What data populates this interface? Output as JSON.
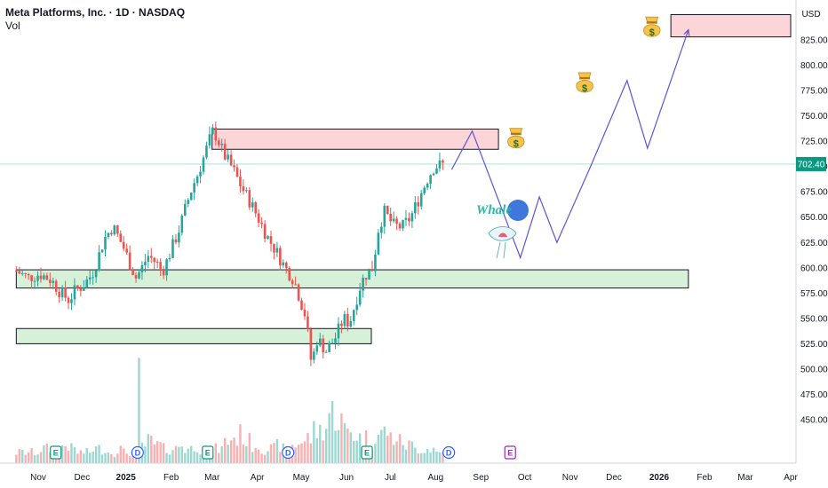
{
  "header": {
    "title": "Meta Platforms, Inc. · 1D · NASDAQ",
    "volume_label": "Vol"
  },
  "chart_data": {
    "type": "candlestick",
    "currency": "USD",
    "ylim": [
      440,
      860
    ],
    "price_ticks": [
      450,
      475,
      500,
      525,
      550,
      575,
      600,
      625,
      650,
      675,
      700,
      725,
      750,
      775,
      800,
      825
    ],
    "last_price": "702.40",
    "last_price_value": 702.4,
    "x_ticks": [
      "Nov",
      "Dec",
      "2025",
      "Feb",
      "Mar",
      "Apr",
      "May",
      "Jun",
      "Jul",
      "Aug",
      "Sep",
      "Oct",
      "Nov",
      "Dec",
      "2026",
      "Feb",
      "Mar",
      "Apr"
    ],
    "bold_ticks": [
      "2025",
      "2026"
    ],
    "x_range_days": [
      0,
      530
    ],
    "x_tick_days": [
      15,
      45,
      75,
      106,
      134,
      165,
      195,
      226,
      256,
      287,
      318,
      348,
      379,
      409,
      440,
      471,
      499,
      530
    ],
    "price_path": [
      [
        0,
        597
      ],
      [
        8,
        590
      ],
      [
        16,
        594
      ],
      [
        24,
        588
      ],
      [
        30,
        576
      ],
      [
        36,
        568
      ],
      [
        40,
        577
      ],
      [
        46,
        583
      ],
      [
        52,
        594
      ],
      [
        56,
        610
      ],
      [
        60,
        628
      ],
      [
        66,
        641
      ],
      [
        70,
        630
      ],
      [
        74,
        618
      ],
      [
        78,
        603
      ],
      [
        82,
        590
      ],
      [
        86,
        600
      ],
      [
        90,
        612
      ],
      [
        96,
        605
      ],
      [
        100,
        596
      ],
      [
        104,
        610
      ],
      [
        108,
        625
      ],
      [
        112,
        640
      ],
      [
        116,
        660
      ],
      [
        120,
        678
      ],
      [
        124,
        692
      ],
      [
        128,
        708
      ],
      [
        132,
        725
      ],
      [
        134,
        735
      ],
      [
        137,
        730
      ],
      [
        142,
        712
      ],
      [
        148,
        698
      ],
      [
        154,
        680
      ],
      [
        160,
        665
      ],
      [
        166,
        648
      ],
      [
        172,
        630
      ],
      [
        178,
        616
      ],
      [
        184,
        600
      ],
      [
        190,
        588
      ],
      [
        194,
        570
      ],
      [
        198,
        552
      ],
      [
        200,
        528
      ],
      [
        202,
        505
      ],
      [
        206,
        530
      ],
      [
        212,
        518
      ],
      [
        218,
        530
      ],
      [
        224,
        550
      ],
      [
        228,
        545
      ],
      [
        232,
        565
      ],
      [
        236,
        585
      ],
      [
        240,
        595
      ],
      [
        244,
        600
      ],
      [
        248,
        640
      ],
      [
        252,
        655
      ],
      [
        258,
        642
      ],
      [
        264,
        640
      ],
      [
        270,
        650
      ],
      [
        276,
        670
      ],
      [
        282,
        690
      ],
      [
        286,
        700
      ],
      [
        292,
        702
      ]
    ],
    "volume_profile": [
      3,
      3,
      3,
      4,
      4,
      3,
      5,
      4,
      3,
      3,
      4,
      4,
      3,
      4,
      3,
      3,
      5,
      6,
      5,
      4,
      4,
      5,
      4,
      5,
      4,
      3,
      4,
      6,
      7,
      8,
      6,
      5,
      4,
      4,
      5,
      4,
      5,
      6,
      7,
      9,
      10,
      14,
      12,
      9,
      8,
      7,
      6,
      8,
      9,
      7,
      6,
      5,
      4,
      4,
      4,
      3,
      3
    ],
    "volume_max_ratio": 0.9,
    "projection_path": [
      [
        298,
        697
      ],
      [
        312,
        735
      ],
      [
        345,
        610
      ],
      [
        358,
        670
      ],
      [
        370,
        625
      ],
      [
        393,
        700
      ],
      [
        418,
        785
      ],
      [
        432,
        718
      ],
      [
        460,
        835
      ]
    ],
    "zones": [
      {
        "kind": "resistance",
        "price_top": 737,
        "price_bottom": 717,
        "day_start": 134,
        "day_end": 330
      },
      {
        "kind": "resistance",
        "price_top": 850,
        "price_bottom": 828,
        "day_start": 448,
        "day_end": 530
      },
      {
        "kind": "support",
        "price_top": 598,
        "price_bottom": 580,
        "day_start": 0,
        "day_end": 460
      },
      {
        "kind": "support",
        "price_top": 540,
        "price_bottom": 525,
        "day_start": 0,
        "day_end": 243
      }
    ],
    "targets": [
      {
        "day": 342,
        "price": 728,
        "icon": "money-bag-icon"
      },
      {
        "day": 389,
        "price": 783,
        "icon": "money-bag-icon"
      },
      {
        "day": 435,
        "price": 838,
        "icon": "money-bag-icon"
      }
    ],
    "event_markers": [
      {
        "day": 27,
        "label": "E",
        "kind": "earnings"
      },
      {
        "day": 83,
        "label": "D",
        "kind": "dividend"
      },
      {
        "day": 131,
        "label": "E",
        "kind": "earnings"
      },
      {
        "day": 186,
        "label": "D",
        "kind": "dividend"
      },
      {
        "day": 240,
        "label": "E",
        "kind": "earnings"
      },
      {
        "day": 296,
        "label": "D",
        "kind": "dividend"
      },
      {
        "day": 338,
        "label": "E",
        "kind": "earnings-upcoming"
      }
    ],
    "watermark_text": "Whale",
    "colors": {
      "up": "#26a69a",
      "down": "#ef5350",
      "projection": "#5b54d6",
      "resistance_fill": "#fcd5d8",
      "support_fill": "#d7f0d8",
      "last_price": "#089981"
    }
  }
}
